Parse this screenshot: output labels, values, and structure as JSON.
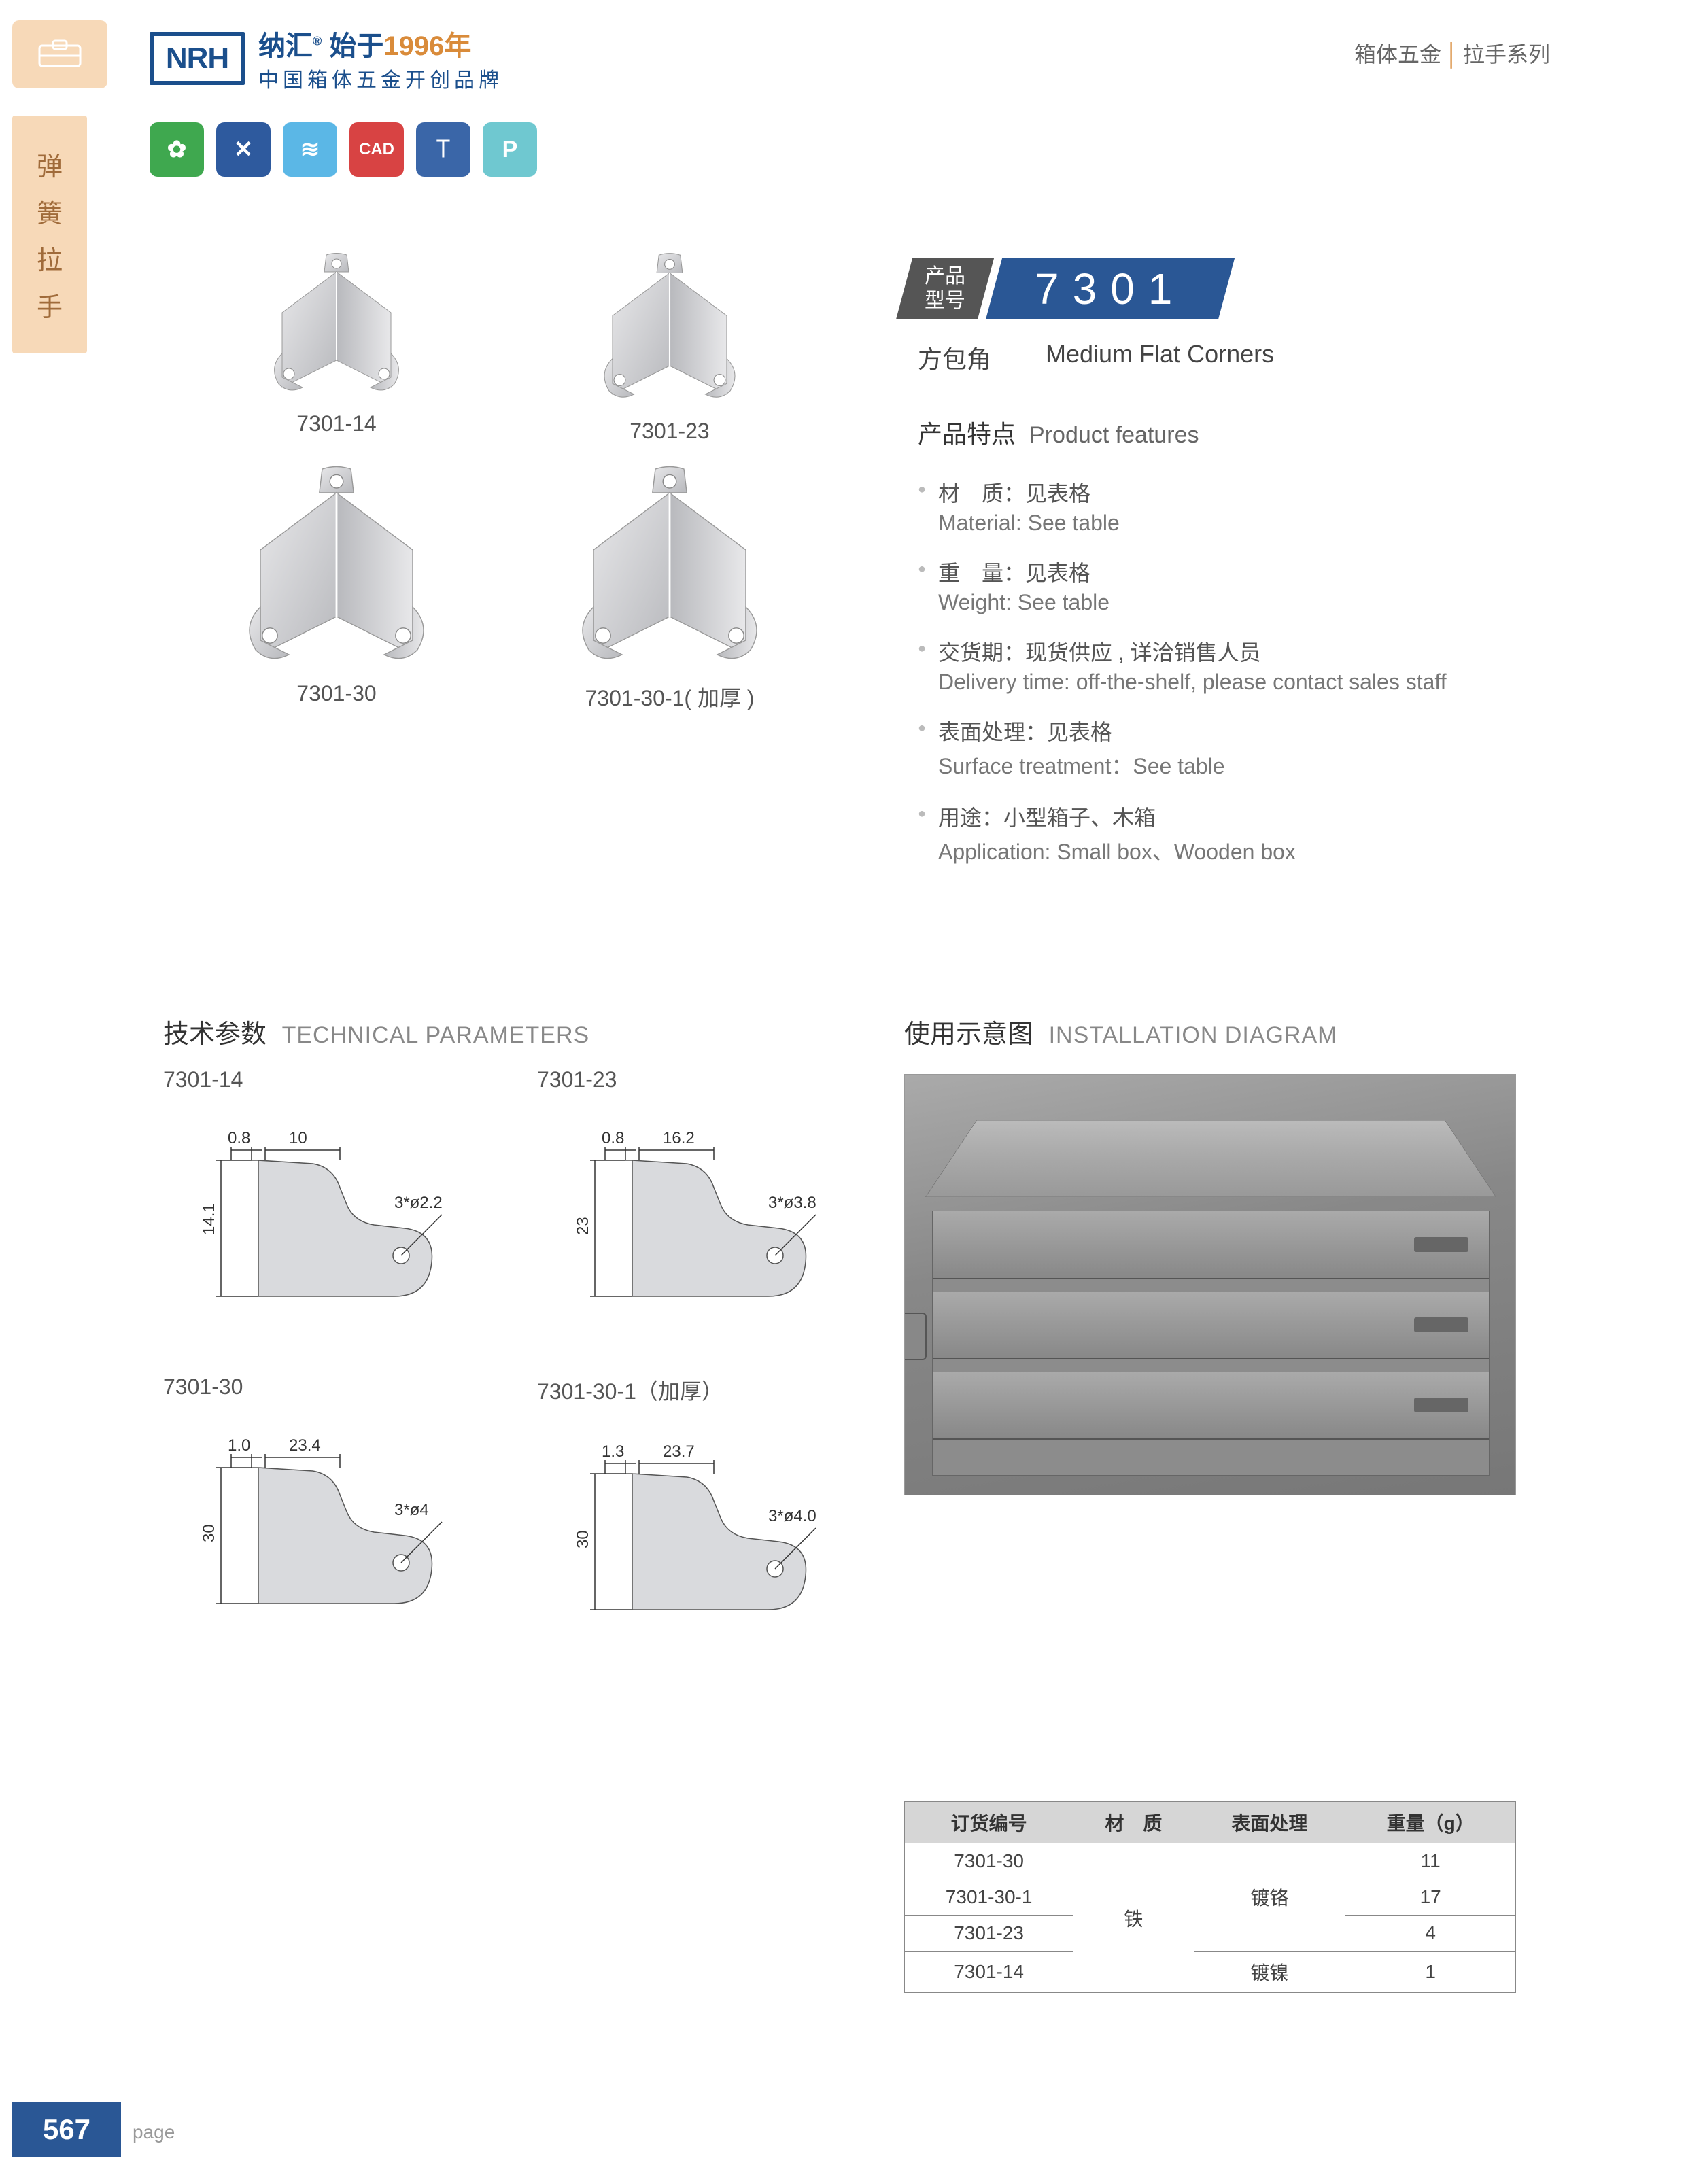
{
  "header": {
    "logo": "NRH",
    "brand_cn": "纳汇",
    "since_label": "始于",
    "year": "1996年",
    "tagline": "中国箱体五金开创品牌",
    "right_cat": "箱体五金",
    "right_series": "拉手系列"
  },
  "side_tab_chars": [
    "弹",
    "簧",
    "拉",
    "手"
  ],
  "icon_badges": [
    {
      "bg": "#3fa84f",
      "glyph": "✿"
    },
    {
      "bg": "#2e5a9e",
      "glyph": "✕"
    },
    {
      "bg": "#5bb7e6",
      "glyph": "≋"
    },
    {
      "bg": "#d84343",
      "glyph": "CAD"
    },
    {
      "bg": "#3a66a8",
      "glyph": "⟙"
    },
    {
      "bg": "#6fc8d0",
      "glyph": "P"
    }
  ],
  "products": [
    {
      "label": "7301-14",
      "size": 200
    },
    {
      "label": "7301-23",
      "size": 210
    },
    {
      "label": "7301-30",
      "size": 280
    },
    {
      "label": "7301-30-1( 加厚 )",
      "size": 280
    }
  ],
  "model": {
    "tag_l1": "产品",
    "tag_l2": "型号",
    "number": "7301",
    "name_cn": "方包角",
    "name_en": "Medium Flat Corners"
  },
  "features": {
    "title_cn": "产品特点",
    "title_en": "Product features",
    "items": [
      {
        "cn": "材　质：见表格",
        "en": "Material: See table"
      },
      {
        "cn": "重　量：见表格",
        "en": "Weight: See table"
      },
      {
        "cn": "交货期：现货供应 , 详洽销售人员",
        "en": "Delivery time: off-the-shelf, please contact sales staff"
      },
      {
        "cn": "表面处理：见表格",
        "en": "Surface treatment：See table"
      },
      {
        "cn": "用途：小型箱子、木箱",
        "en": "Application: Small box、Wooden box"
      }
    ]
  },
  "sections": {
    "tech_cn": "技术参数",
    "tech_en": "TECHNICAL PARAMETERS",
    "install_cn": "使用示意图",
    "install_en": "INSTALLATION DIAGRAM"
  },
  "diagrams": [
    {
      "label": "7301-14",
      "t": "0.8",
      "w": "10",
      "h": "14.1",
      "hole": "3*ø2.2"
    },
    {
      "label": "7301-23",
      "t": "0.8",
      "w": "16.2",
      "h": "23",
      "hole": "3*ø3.8"
    },
    {
      "label": "7301-30",
      "t": "1.0",
      "w": "23.4",
      "h": "30",
      "hole": "3*ø4"
    },
    {
      "label": "7301-30-1（加厚）",
      "t": "1.3",
      "w": "23.7",
      "h": "30",
      "hole": "3*ø4.0"
    }
  ],
  "spec_table": {
    "headers": [
      "订货编号",
      "材　质",
      "表面处理",
      "重量（g）"
    ],
    "material": "铁",
    "rows": [
      {
        "code": "7301-30",
        "treat": "镀铬",
        "weight": "11",
        "treat_span_start": true
      },
      {
        "code": "7301-30-1",
        "treat": "",
        "weight": "17"
      },
      {
        "code": "7301-23",
        "treat": "",
        "weight": "4"
      },
      {
        "code": "7301-14",
        "treat": "镀镍",
        "weight": "1",
        "treat_own": true
      }
    ]
  },
  "page": {
    "num": "567",
    "label": "page"
  },
  "colors": {
    "brand_blue": "#1b4f8c",
    "accent_blue": "#2a5795",
    "peach": "#f7d9b8",
    "text": "#333",
    "muted": "#777",
    "steel_light": "#e8e8ea",
    "steel_dark": "#b8b9bd"
  }
}
